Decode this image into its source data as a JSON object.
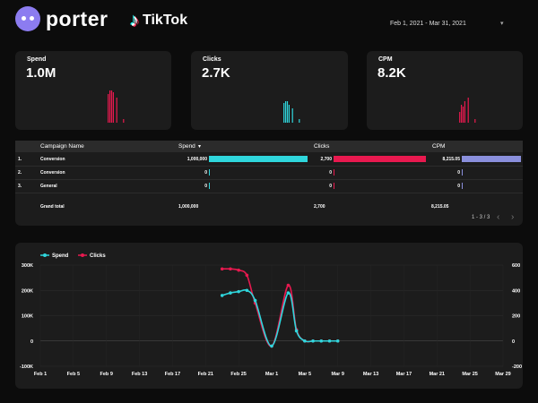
{
  "header": {
    "brand": "porter",
    "platform": "TikTok",
    "date_range": "Feb 1, 2021 - Mar 31, 2021",
    "date_caret": "▾"
  },
  "kpis": [
    {
      "label": "Spend",
      "value": "1.0M",
      "color": "#e8194f",
      "spark": [
        0,
        0,
        0,
        0,
        0,
        0,
        0,
        0,
        0,
        0,
        0,
        0,
        0,
        0,
        0,
        0,
        0,
        0,
        0,
        0.8,
        0.9,
        0.9,
        0.85,
        0,
        0.7,
        0,
        0,
        0,
        0.1,
        0,
        0
      ]
    },
    {
      "label": "Clicks",
      "value": "2.7K",
      "color": "#2fd6dc",
      "spark": [
        0,
        0,
        0,
        0,
        0,
        0,
        0,
        0,
        0,
        0,
        0,
        0,
        0,
        0,
        0,
        0,
        0,
        0,
        0,
        0.55,
        0.6,
        0.6,
        0.5,
        0,
        0.4,
        0,
        0,
        0,
        0.1,
        0,
        0
      ]
    },
    {
      "label": "CPM",
      "value": "8.2K",
      "color": "#e8194f",
      "spark": [
        0,
        0,
        0,
        0,
        0,
        0,
        0,
        0,
        0,
        0,
        0,
        0,
        0,
        0,
        0,
        0,
        0,
        0,
        0,
        0.3,
        0.5,
        0.45,
        0.6,
        0,
        0.7,
        0,
        0,
        0,
        0.1,
        0,
        0
      ]
    }
  ],
  "table": {
    "columns": [
      "Campaign Name",
      "Spend",
      "Clicks",
      "CPM"
    ],
    "sort_indicator": "▾",
    "rows": [
      {
        "index": "1.",
        "name": "Conversion",
        "spend": "1,000,000",
        "clicks": "2,700",
        "cpm": "8,215.05",
        "spend_frac": 1,
        "clicks_frac": 1,
        "cpm_frac": 1
      },
      {
        "index": "2.",
        "name": "Conversion",
        "spend": "0",
        "clicks": "0",
        "cpm": "0",
        "spend_frac": 0,
        "clicks_frac": 0,
        "cpm_frac": 0
      },
      {
        "index": "3.",
        "name": "General",
        "spend": "0",
        "clicks": "0",
        "cpm": "0",
        "spend_frac": 0,
        "clicks_frac": 0,
        "cpm_frac": 0
      }
    ],
    "grand_total": {
      "label": "Grand total",
      "spend": "1,000,000",
      "clicks": "2,700",
      "cpm": "8,215.05"
    },
    "pagination": "1 - 3 / 3",
    "bar_colors": {
      "spend": "#2fd6dc",
      "clicks": "#e8194f",
      "cpm": "#8a8fdc"
    }
  },
  "chart_data": {
    "type": "line",
    "x_ticks": [
      "Feb 1",
      "Feb 5",
      "Feb 9",
      "Feb 13",
      "Feb 17",
      "Feb 21",
      "Feb 25",
      "Mar 1",
      "Mar 5",
      "Mar 9",
      "Mar 13",
      "Mar 17",
      "Mar 21",
      "Mar 25",
      "Mar 29"
    ],
    "y_left_ticks": [
      "300K",
      "200K",
      "100K",
      "0",
      "-100K"
    ],
    "y_right_ticks": [
      "600",
      "400",
      "200",
      "0",
      "-200"
    ],
    "y_left_range": [
      -100000,
      300000
    ],
    "y_right_range": [
      -200,
      600
    ],
    "series": [
      {
        "name": "Spend",
        "axis": "left",
        "color": "#2fd6dc",
        "points": [
          [
            22,
            180000
          ],
          [
            23,
            190000
          ],
          [
            24,
            195000
          ],
          [
            25,
            200000
          ],
          [
            26,
            160000
          ],
          [
            28,
            -20000
          ],
          [
            30,
            190000
          ],
          [
            31,
            40000
          ],
          [
            32,
            0
          ],
          [
            33,
            0
          ],
          [
            34,
            0
          ],
          [
            35,
            0
          ],
          [
            36,
            0
          ]
        ]
      },
      {
        "name": "Clicks",
        "axis": "right",
        "color": "#e8194f",
        "points": [
          [
            22,
            570
          ],
          [
            23,
            570
          ],
          [
            24,
            560
          ],
          [
            25,
            520
          ],
          [
            26,
            300
          ],
          [
            28,
            -40
          ],
          [
            30,
            440
          ],
          [
            31,
            90
          ],
          [
            32,
            0
          ],
          [
            33,
            0
          ],
          [
            34,
            0
          ],
          [
            35,
            0
          ],
          [
            36,
            0
          ]
        ]
      }
    ]
  }
}
